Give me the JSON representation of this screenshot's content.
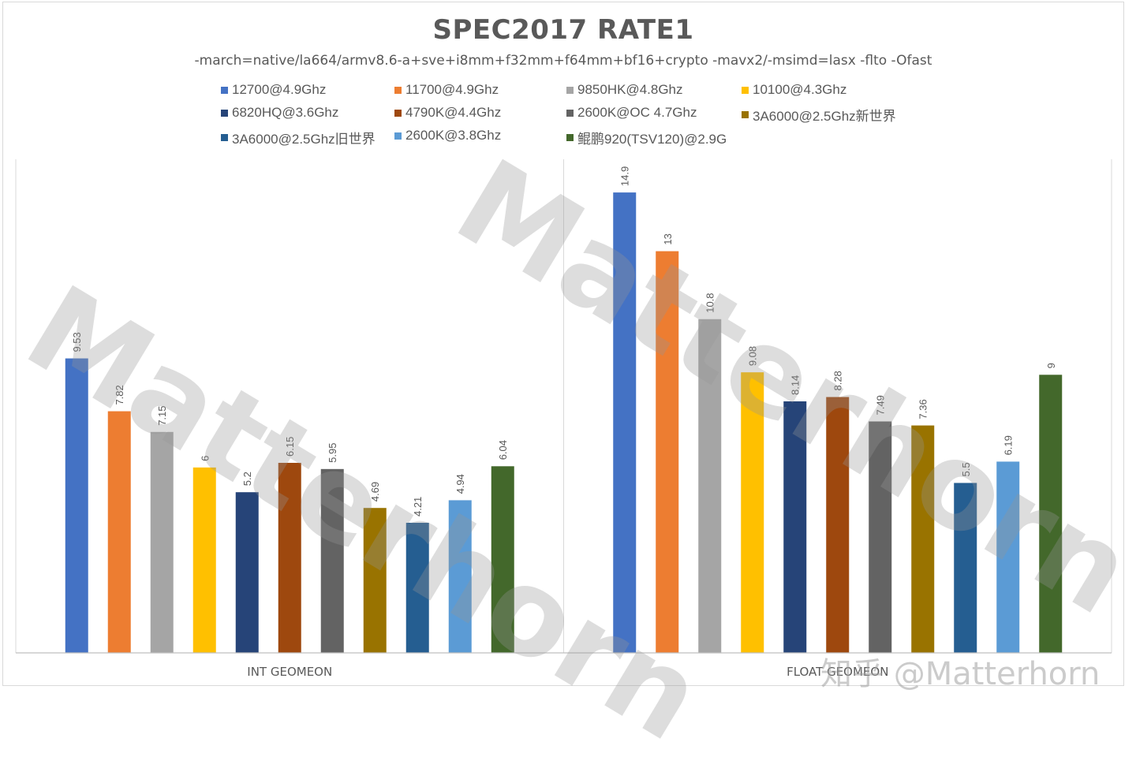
{
  "title": "SPEC2017 RATE1",
  "subtitle": "-march=native/la664/armv8.6-a+sve+i8mm+f32mm+f64mm+bf16+crypto  -mavx2/-msimd=lasx -flto -Ofast",
  "watermarks": {
    "main": "Matterhorn",
    "credit": "知乎 @Matterhorn"
  },
  "chart_data": {
    "type": "bar",
    "title": "SPEC2017 RATE1",
    "categories": [
      "INT GEOMEON",
      "FLOAT GEOMEON"
    ],
    "ylim": [
      0,
      16
    ],
    "grid": false,
    "legend_position": "top",
    "series": [
      {
        "name": "12700@4.9Ghz",
        "color": "#4472c4",
        "values": [
          9.53,
          14.9
        ]
      },
      {
        "name": "11700@4.9Ghz",
        "color": "#ed7d31",
        "values": [
          7.82,
          13
        ]
      },
      {
        "name": "9850HK@4.8Ghz",
        "color": "#a5a5a5",
        "values": [
          7.15,
          10.8
        ]
      },
      {
        "name": "10100@4.3Ghz",
        "color": "#ffc000",
        "values": [
          6,
          9.08
        ]
      },
      {
        "name": "6820HQ@3.6Ghz",
        "color": "#264478",
        "values": [
          5.2,
          8.14
        ]
      },
      {
        "name": "4790K@4.4Ghz",
        "color": "#9e480e",
        "values": [
          6.15,
          8.28
        ]
      },
      {
        "name": "2600K@OC 4.7Ghz",
        "color": "#636363",
        "values": [
          5.95,
          7.49
        ]
      },
      {
        "name": "3A6000@2.5Ghz新世界",
        "color": "#997300",
        "values": [
          4.69,
          7.36
        ]
      },
      {
        "name": "3A6000@2.5Ghz旧世界",
        "color": "#255e91",
        "values": [
          4.21,
          5.5
        ]
      },
      {
        "name": "2600K@3.8Ghz",
        "color": "#5b9bd5",
        "values": [
          4.94,
          6.19
        ]
      },
      {
        "name": "鲲鹏920(TSV120)@2.9G",
        "color": "#43682b",
        "values": [
          6.04,
          9
        ]
      }
    ]
  }
}
